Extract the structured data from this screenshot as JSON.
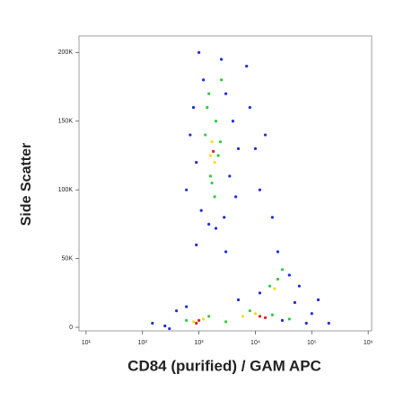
{
  "chart_data": {
    "type": "scatter",
    "xlabel": "CD84 (purified) / GAM APC",
    "ylabel": "Side Scatter",
    "xscale": "log",
    "xlim": [
      7.5,
      1150000
    ],
    "xticks": [
      {
        "value": 10,
        "label": "10¹"
      },
      {
        "value": 100,
        "label": "10²"
      },
      {
        "value": 1000,
        "label": "10³"
      },
      {
        "value": 10000,
        "label": "10⁴"
      },
      {
        "value": 100000,
        "label": "10⁵"
      },
      {
        "value": 1000000,
        "label": "10⁶"
      }
    ],
    "ylim": [
      -2600,
      212000
    ],
    "yticks": [
      0,
      {
        "value": 50000,
        "label": "50K"
      },
      {
        "value": 100000,
        "label": "100K"
      },
      {
        "value": 150000,
        "label": "150K"
      },
      {
        "value": 200000,
        "label": "200K"
      }
    ],
    "series": [
      {
        "color": "#1f2fd8",
        "x": [
          1000,
          2500,
          1200,
          3000,
          800,
          4000,
          700,
          5000,
          900,
          3500,
          600,
          4500,
          1100,
          2800,
          1500,
          2000,
          8000,
          10000,
          12000,
          7000,
          15000,
          900,
          3000,
          20000,
          150,
          250,
          400,
          600,
          30000,
          80000,
          100000,
          50000,
          12000,
          25000,
          40000,
          60000,
          200000,
          5000,
          300,
          130000
        ],
        "y": [
          200000,
          195000,
          180000,
          170000,
          160000,
          150000,
          140000,
          130000,
          120000,
          110000,
          100000,
          95000,
          85000,
          80000,
          75000,
          72000,
          160000,
          130000,
          100000,
          190000,
          140000,
          60000,
          55000,
          80000,
          3000,
          1000,
          12000,
          15000,
          5000,
          3000,
          10000,
          18000,
          25000,
          55000,
          38000,
          30000,
          3000,
          20000,
          -1000,
          20000
        ]
      },
      {
        "color": "#2ecc40",
        "x": [
          1500,
          2000,
          1300,
          2200,
          1600,
          1900,
          1400,
          2400,
          1700,
          600,
          1500,
          3000,
          8000,
          20000,
          40000,
          25000,
          18000,
          30000,
          2500
        ],
        "y": [
          170000,
          150000,
          140000,
          125000,
          110000,
          95000,
          160000,
          135000,
          105000,
          5000,
          8000,
          4000,
          12000,
          9000,
          6000,
          35000,
          30000,
          42000,
          180000
        ]
      },
      {
        "color": "#f0e020",
        "x": [
          1700,
          1900,
          1600,
          800,
          1200,
          6000,
          10000,
          22000
        ],
        "y": [
          135000,
          120000,
          125000,
          4000,
          6000,
          8000,
          10000,
          28000
        ]
      },
      {
        "color": "#e02020",
        "x": [
          1000,
          900,
          12000,
          15000,
          1800
        ],
        "y": [
          5000,
          3000,
          8000,
          7000,
          128000
        ]
      }
    ]
  }
}
